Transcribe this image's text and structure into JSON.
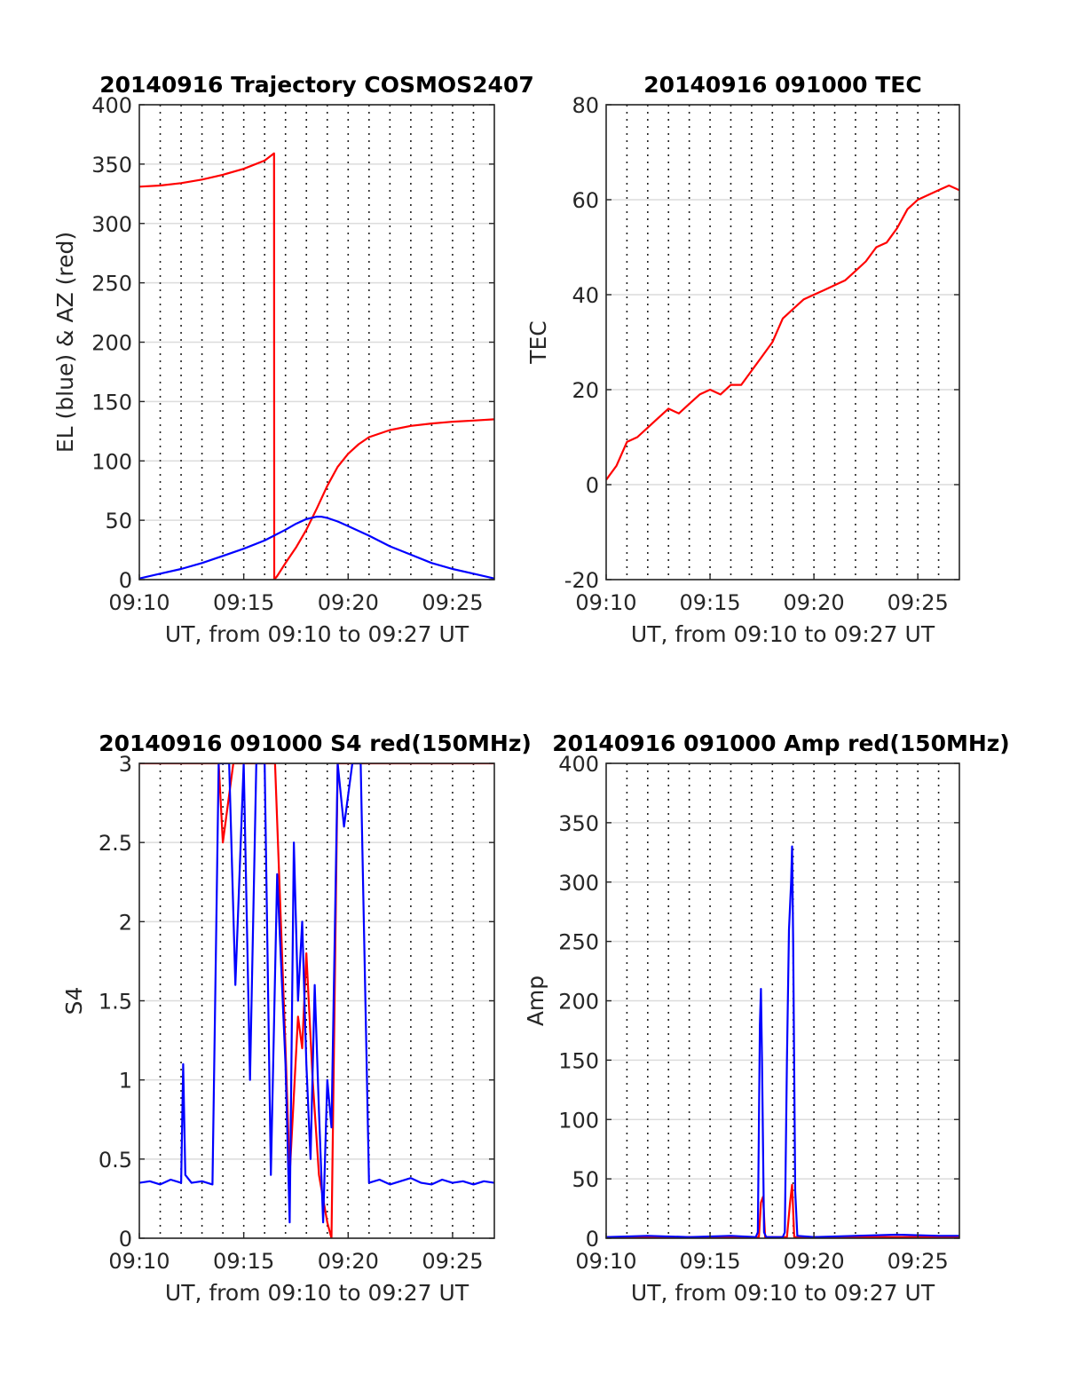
{
  "chart_data": [
    {
      "type": "line",
      "title": "20140916 Trajectory COSMOS2407",
      "xlabel": "UT, from 09:10 to 09:27 UT",
      "ylabel": "EL (blue) & AZ (red)",
      "x_ticks": [
        "09:10",
        "09:15",
        "09:20",
        "09:25"
      ],
      "y_ticks": [
        "0",
        "50",
        "100",
        "150",
        "200",
        "250",
        "300",
        "350",
        "400"
      ],
      "xlim": [
        0,
        17
      ],
      "ylim": [
        0,
        400
      ],
      "x_unit": "minutes after 09:10 UT",
      "grid": "on",
      "series": [
        {
          "color": "#ff0000",
          "x": [
            0,
            1,
            2,
            3,
            4,
            5,
            6,
            6.45,
            6.46,
            6.6,
            7,
            7.5,
            8,
            8.5,
            9,
            9.5,
            10,
            10.5,
            11,
            12,
            13,
            14,
            15,
            16,
            17
          ],
          "y": [
            331,
            332,
            334,
            337,
            341,
            346,
            353,
            359,
            0,
            3,
            14,
            27,
            42,
            60,
            79,
            95,
            106,
            114,
            120,
            126,
            129.5,
            131.5,
            133,
            134,
            135
          ]
        },
        {
          "color": "#0000ff",
          "x": [
            0,
            1,
            2,
            3,
            4,
            5,
            6,
            7,
            7.5,
            8,
            8.5,
            8.7,
            9,
            9.5,
            10,
            11,
            12,
            13,
            14,
            15,
            16,
            17
          ],
          "y": [
            1,
            5,
            9,
            14,
            20,
            26,
            33,
            42,
            47,
            51,
            53,
            53,
            52,
            49,
            45,
            37,
            28,
            21,
            14,
            9,
            5,
            1
          ]
        }
      ]
    },
    {
      "type": "line",
      "title": "20140916 091000 TEC",
      "xlabel": "UT, from 09:10 to 09:27 UT",
      "ylabel": "TEC",
      "x_ticks": [
        "09:10",
        "09:15",
        "09:20",
        "09:25"
      ],
      "y_ticks": [
        "-20",
        "0",
        "20",
        "40",
        "60",
        "80"
      ],
      "xlim": [
        0,
        17
      ],
      "ylim": [
        -20,
        80
      ],
      "x_unit": "minutes after 09:10 UT",
      "grid": "on",
      "series": [
        {
          "color": "#ff0000",
          "x": [
            0,
            0.5,
            1,
            1.5,
            2,
            2.5,
            3,
            3.5,
            4,
            4.5,
            5,
            5.5,
            6,
            6.5,
            7,
            7.5,
            8,
            8.5,
            9,
            9.5,
            10,
            10.5,
            11,
            11.5,
            12,
            12.5,
            13,
            13.5,
            14,
            14.5,
            15,
            15.5,
            16,
            16.5,
            17
          ],
          "y": [
            1,
            4,
            9,
            10,
            12,
            14,
            16,
            15,
            17,
            19,
            20,
            19,
            21,
            21,
            24,
            27,
            30,
            35,
            37,
            39,
            40,
            41,
            42,
            43,
            45,
            47,
            50,
            51,
            54,
            58,
            60,
            61,
            62,
            63,
            62
          ]
        }
      ]
    },
    {
      "type": "line",
      "title": "20140916 091000 S4 red(150MHz)",
      "xlabel": "UT, from 09:10 to 09:27 UT",
      "ylabel": "S4",
      "x_ticks": [
        "09:10",
        "09:15",
        "09:20",
        "09:25"
      ],
      "y_ticks": [
        "0",
        "0.5",
        "1",
        "1.5",
        "2",
        "2.5",
        "3"
      ],
      "xlim": [
        0,
        17
      ],
      "ylim": [
        0,
        3
      ],
      "x_unit": "minutes after 09:10 UT",
      "grid": "on",
      "series": [
        {
          "color": "#ff0000",
          "x": [
            0,
            1,
            2,
            3,
            3.8,
            4.0,
            4.5,
            5,
            5.5,
            6,
            6.5,
            7.0,
            7.2,
            7.6,
            7.8,
            8.0,
            8.3,
            8.6,
            9.0,
            9.2,
            9.5,
            9.8,
            10.2,
            10.6,
            11,
            12,
            13,
            14,
            15,
            16,
            17
          ],
          "y": [
            3,
            3,
            3,
            3,
            3,
            2.5,
            3,
            3,
            3,
            3,
            3,
            1.2,
            0.4,
            1.4,
            1.2,
            1.8,
            1.0,
            0.4,
            0.1,
            0.0,
            3,
            3,
            3,
            3,
            3,
            3,
            3,
            3,
            3,
            3,
            3
          ]
        },
        {
          "color": "#0000ff",
          "x": [
            0,
            0.5,
            1,
            1.5,
            2,
            2.1,
            2.2,
            2.5,
            3,
            3.5,
            3.8,
            4.0,
            4.3,
            4.6,
            5.0,
            5.3,
            5.6,
            6.0,
            6.3,
            6.6,
            7.0,
            7.2,
            7.4,
            7.6,
            7.8,
            8.0,
            8.2,
            8.4,
            8.6,
            8.8,
            9.0,
            9.2,
            9.5,
            9.8,
            10.2,
            10.6,
            11,
            11.5,
            12,
            12.5,
            13,
            13.5,
            14,
            14.5,
            15,
            15.5,
            16,
            16.5,
            17
          ],
          "y": [
            0.35,
            0.36,
            0.34,
            0.37,
            0.35,
            1.1,
            0.4,
            0.35,
            0.36,
            0.34,
            3,
            3,
            3,
            1.6,
            3,
            1.0,
            3,
            3,
            0.4,
            2.3,
            1.1,
            0.1,
            2.5,
            1.5,
            2.0,
            1.1,
            0.5,
            1.6,
            0.8,
            0.1,
            1.0,
            0.7,
            3,
            2.6,
            3,
            3,
            0.35,
            0.37,
            0.34,
            0.36,
            0.38,
            0.35,
            0.34,
            0.37,
            0.35,
            0.36,
            0.34,
            0.36,
            0.35
          ]
        }
      ]
    },
    {
      "type": "line",
      "title": "20140916 091000 Amp red(150MHz)",
      "xlabel": "UT, from 09:10 to 09:27 UT",
      "ylabel": "Amp",
      "x_ticks": [
        "09:10",
        "09:15",
        "09:20",
        "09:25"
      ],
      "y_ticks": [
        "0",
        "50",
        "100",
        "150",
        "200",
        "250",
        "300",
        "350",
        "400"
      ],
      "xlim": [
        0,
        17
      ],
      "ylim": [
        0,
        400
      ],
      "x_unit": "minutes after 09:10 UT",
      "grid": "on",
      "series": [
        {
          "color": "#ff0000",
          "x": [
            0,
            7.35,
            7.45,
            7.55,
            7.65,
            8.7,
            8.85,
            8.95,
            9.05,
            17
          ],
          "y": [
            1,
            1,
            30,
            35,
            1,
            1,
            30,
            45,
            1,
            1
          ]
        },
        {
          "color": "#0000ff",
          "x": [
            0,
            2,
            4,
            6,
            7.2,
            7.3,
            7.4,
            7.45,
            7.5,
            7.6,
            7.7,
            8.5,
            8.6,
            8.7,
            8.8,
            8.9,
            8.95,
            9.0,
            9.1,
            9.2,
            10,
            12,
            14,
            16,
            17
          ],
          "y": [
            1,
            2,
            1,
            2,
            1,
            5,
            180,
            210,
            150,
            5,
            1,
            1,
            5,
            150,
            260,
            300,
            330,
            250,
            40,
            2,
            1,
            2,
            3,
            2,
            2
          ]
        }
      ]
    }
  ]
}
